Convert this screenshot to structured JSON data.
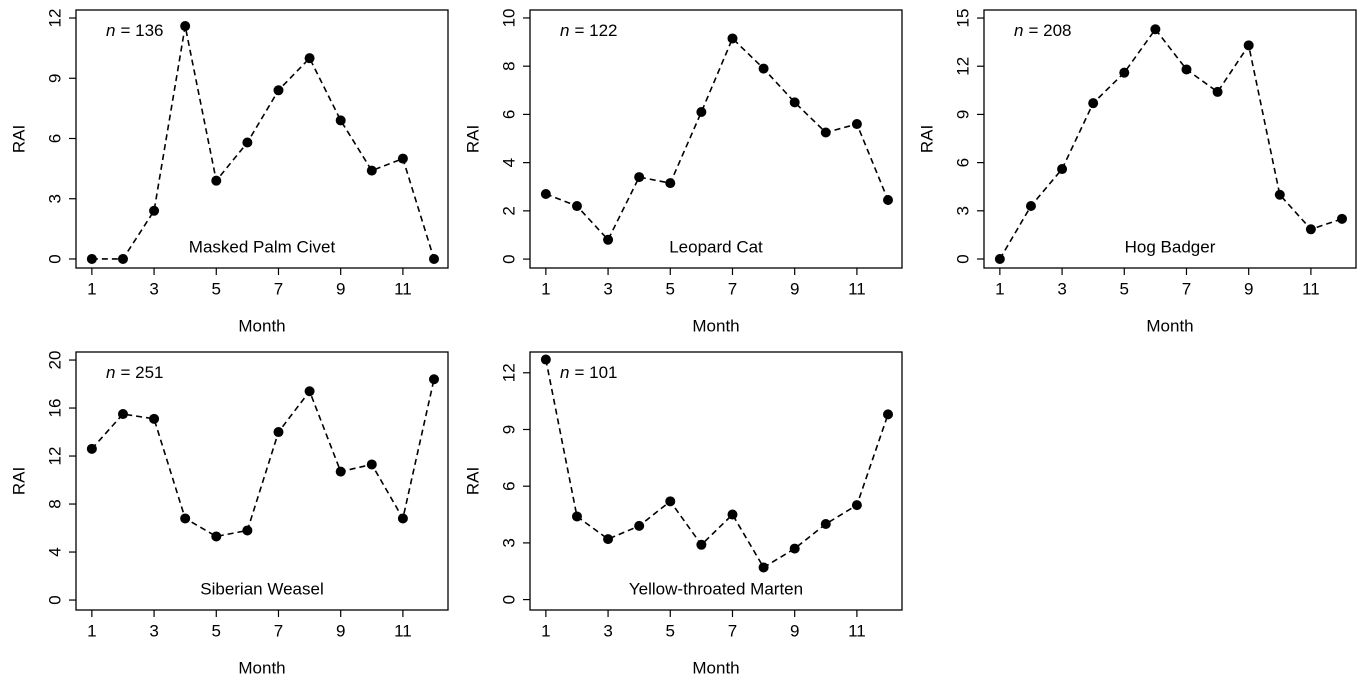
{
  "chart_data": [
    {
      "type": "line",
      "annotation": "Masked Palm Civet",
      "n_symbol": "n",
      "n_text": "= 136",
      "xlabel": "Month",
      "ylabel": "RAI",
      "x": [
        1,
        2,
        3,
        4,
        5,
        6,
        7,
        8,
        9,
        10,
        11,
        12
      ],
      "values": [
        0,
        0,
        2.4,
        11.6,
        3.9,
        5.8,
        8.4,
        10,
        6.9,
        4.4,
        5,
        0
      ],
      "xlim": [
        0.49,
        12.45
      ],
      "ylim": [
        -0.45,
        12.4
      ],
      "xticks": [
        1,
        3,
        5,
        7,
        9,
        11
      ],
      "yticks": [
        0,
        3,
        6,
        9,
        12
      ],
      "color": "#000000"
    },
    {
      "type": "line",
      "annotation": "Leopard Cat",
      "n_symbol": "n",
      "n_text": "= 122",
      "xlabel": "Month",
      "ylabel": "RAI",
      "x": [
        1,
        2,
        3,
        4,
        5,
        6,
        7,
        8,
        9,
        10,
        11,
        12
      ],
      "values": [
        2.7,
        2.2,
        0.8,
        3.4,
        3.15,
        6.1,
        9.15,
        7.9,
        6.5,
        5.25,
        5.6,
        2.45
      ],
      "xlim": [
        0.49,
        12.45
      ],
      "ylim": [
        -0.37,
        10.33
      ],
      "xticks": [
        1,
        3,
        5,
        7,
        9,
        11
      ],
      "yticks": [
        0,
        2,
        4,
        6,
        8,
        10
      ],
      "color": "#000000"
    },
    {
      "type": "line",
      "annotation": "Hog Badger",
      "n_symbol": "n",
      "n_text": "= 208",
      "xlabel": "Month",
      "ylabel": "RAI",
      "x": [
        1,
        2,
        3,
        4,
        5,
        6,
        7,
        8,
        9,
        10,
        11,
        12
      ],
      "values": [
        0,
        3.3,
        5.6,
        9.7,
        11.6,
        14.3,
        11.8,
        10.4,
        13.3,
        4,
        1.85,
        2.5
      ],
      "xlim": [
        0.49,
        12.45
      ],
      "ylim": [
        -0.56,
        15.5
      ],
      "xticks": [
        1,
        3,
        5,
        7,
        9,
        11
      ],
      "yticks": [
        0,
        3,
        6,
        9,
        12,
        15
      ],
      "color": "#000000"
    },
    {
      "type": "line",
      "annotation": "Siberian Weasel",
      "n_symbol": "n",
      "n_text": "= 251",
      "xlabel": "Month",
      "ylabel": "RAI",
      "x": [
        1,
        2,
        3,
        4,
        5,
        6,
        7,
        8,
        9,
        10,
        11,
        12
      ],
      "values": [
        12.6,
        15.5,
        15.1,
        6.8,
        5.3,
        5.8,
        14,
        17.4,
        10.7,
        11.3,
        6.8,
        18.4
      ],
      "xlim": [
        0.49,
        12.45
      ],
      "ylim": [
        -0.83,
        20.67
      ],
      "xticks": [
        1,
        3,
        5,
        7,
        9,
        11
      ],
      "yticks": [
        0,
        4,
        8,
        12,
        16,
        20
      ],
      "color": "#000000"
    },
    {
      "type": "line",
      "annotation": "Yellow-throated Marten",
      "n_symbol": "n",
      "n_text": "= 101",
      "xlabel": "Month",
      "ylabel": "RAI",
      "x": [
        1,
        2,
        3,
        4,
        5,
        6,
        7,
        8,
        9,
        10,
        11,
        12
      ],
      "values": [
        12.7,
        4.4,
        3.2,
        3.9,
        5.2,
        2.9,
        4.5,
        1.7,
        2.7,
        4,
        5,
        9.8
      ],
      "xlim": [
        0.49,
        12.45
      ],
      "ylim": [
        -0.55,
        13.1
      ],
      "xticks": [
        1,
        3,
        5,
        7,
        9,
        11
      ],
      "yticks": [
        0,
        3,
        6,
        9,
        12
      ],
      "color": "#000000"
    }
  ]
}
